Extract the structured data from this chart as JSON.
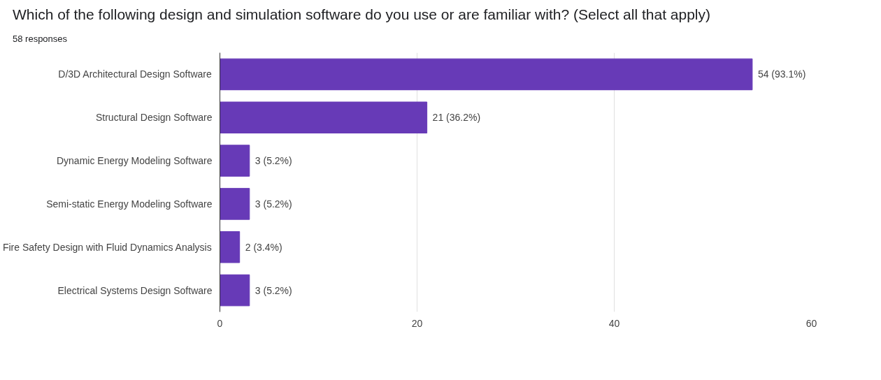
{
  "chart_data": {
    "type": "bar",
    "orientation": "horizontal",
    "title": "Which of the following design and simulation software do you use or are familiar with? (Select all that apply)",
    "subtitle": "58 responses",
    "categories": [
      "D/3D Architectural Design Software",
      "Structural Design Software",
      "Dynamic Energy Modeling Software",
      "Semi-static Energy Modeling Software",
      "Fire Safety Design with Fluid Dynamics Analysis",
      "Electrical Systems Design Software"
    ],
    "values": [
      54,
      21,
      3,
      3,
      2,
      3
    ],
    "value_labels": [
      "54 (93.1%)",
      "21 (36.2%)",
      "3 (5.2%)",
      "3 (5.2%)",
      "2 (3.4%)",
      "3 (5.2%)"
    ],
    "color": "#673ab7",
    "xlim": [
      0,
      60
    ],
    "xticks": [
      0,
      20,
      40,
      60
    ],
    "grid": "x"
  }
}
